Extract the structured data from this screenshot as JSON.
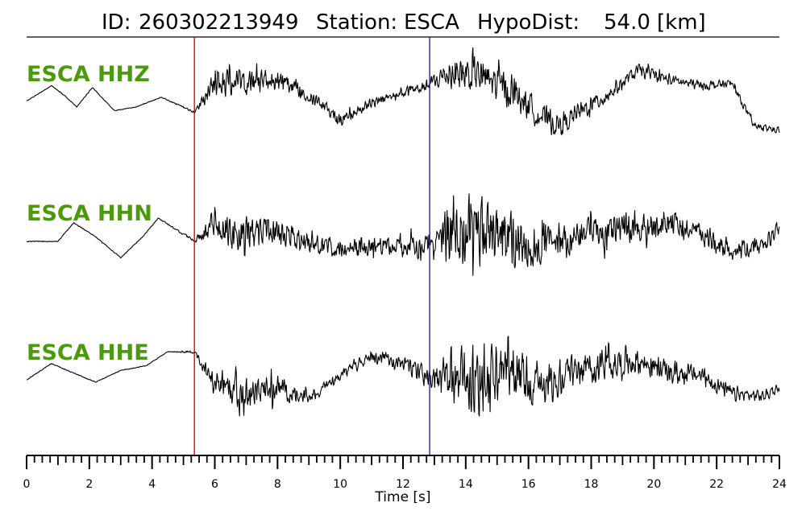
{
  "chart_data": {
    "type": "line",
    "title": {
      "id_label": "ID:",
      "id_value": "260302213949",
      "station_label": "Station:",
      "station_value": "ESCA",
      "dist_label": "HypoDist:",
      "dist_value": "54.0",
      "dist_unit": "[km]"
    },
    "xlabel": "Time [s]",
    "xlim": [
      0,
      24
    ],
    "x_major_ticks": [
      0,
      2,
      4,
      6,
      8,
      10,
      12,
      14,
      16,
      18,
      20,
      22,
      24
    ],
    "x_tick_labels": [
      "0",
      "2",
      "4",
      "6",
      "8",
      "10",
      "12",
      "14",
      "16",
      "18",
      "20",
      "22",
      "24"
    ],
    "x_minor_tick_step": 0.25,
    "picks": [
      {
        "phase": "P",
        "time": 5.35,
        "color": "#e8000b"
      },
      {
        "phase": "S",
        "time": 12.85,
        "color": "#1f1fb4"
      }
    ],
    "label_color": "#4b9a0c",
    "trace_color": "#000000",
    "series": [
      {
        "name": "ESCA HHZ",
        "t": [
          0,
          0.8,
          1.2,
          1.6,
          2.1,
          2.8,
          3.5,
          4.3,
          5.35,
          6.0,
          7.0,
          8.0,
          9.0,
          10.0,
          11.0,
          12.0,
          12.8,
          13.5,
          14.5,
          15.5,
          16.5,
          17.0,
          17.5,
          18.5,
          19.5,
          20.5,
          21.5,
          22.5,
          23.2,
          24
        ],
        "base": [
          0.05,
          0.45,
          0.2,
          -0.1,
          0.4,
          -0.2,
          -0.1,
          0.15,
          -0.25,
          0.55,
          0.5,
          0.65,
          0.2,
          -0.45,
          0.0,
          0.25,
          0.45,
          0.8,
          0.7,
          0.3,
          -0.4,
          -0.6,
          -0.3,
          0.2,
          0.85,
          0.6,
          0.45,
          0.5,
          -0.6,
          -0.7
        ],
        "amp": [
          0.01,
          0.01,
          0.01,
          0.01,
          0.01,
          0.01,
          0.01,
          0.01,
          0.04,
          0.45,
          0.4,
          0.3,
          0.22,
          0.18,
          0.15,
          0.15,
          0.18,
          0.55,
          0.6,
          0.5,
          0.4,
          0.35,
          0.3,
          0.25,
          0.2,
          0.18,
          0.15,
          0.12,
          0.1,
          0.1
        ]
      },
      {
        "name": "ESCA HHN",
        "t": [
          0,
          1.0,
          1.5,
          2.2,
          3.0,
          3.7,
          4.2,
          5.35,
          6.0,
          6.5,
          7.5,
          8.5,
          9.5,
          10.5,
          11.5,
          12.5,
          12.9,
          13.5,
          14.5,
          15.5,
          16.5,
          17.5,
          18.5,
          19.5,
          20.5,
          21.5,
          22.5,
          23.5,
          24
        ],
        "base": [
          0.0,
          0.0,
          0.4,
          0.1,
          -0.35,
          0.1,
          0.5,
          0.0,
          0.4,
          0.2,
          0.2,
          0.1,
          -0.1,
          -0.15,
          -0.1,
          -0.1,
          0.0,
          0.3,
          0.2,
          0.0,
          -0.05,
          0.1,
          0.2,
          0.3,
          0.4,
          0.15,
          -0.2,
          -0.1,
          0.3
        ],
        "amp": [
          0.01,
          0.01,
          0.01,
          0.01,
          0.01,
          0.01,
          0.01,
          0.04,
          0.4,
          0.55,
          0.4,
          0.3,
          0.25,
          0.25,
          0.25,
          0.3,
          0.3,
          0.8,
          0.85,
          0.7,
          0.5,
          0.45,
          0.45,
          0.4,
          0.35,
          0.3,
          0.25,
          0.2,
          0.2
        ]
      },
      {
        "name": "ESCA HHE",
        "t": [
          0,
          0.8,
          1.3,
          2.2,
          3.0,
          3.8,
          4.5,
          5.35,
          6.0,
          7.0,
          8.0,
          9.0,
          10.0,
          11.0,
          12.0,
          12.9,
          13.5,
          14.5,
          15.5,
          16.5,
          17.5,
          18.5,
          19.5,
          20.5,
          21.5,
          22.5,
          23.5,
          24
        ],
        "base": [
          0.0,
          0.35,
          0.2,
          -0.05,
          0.2,
          0.3,
          0.6,
          0.6,
          -0.1,
          -0.3,
          -0.2,
          -0.4,
          0.1,
          0.5,
          0.35,
          0.0,
          0.0,
          0.0,
          0.2,
          -0.1,
          0.25,
          0.35,
          0.4,
          0.15,
          0.1,
          -0.3,
          -0.35,
          -0.15
        ],
        "amp": [
          0.01,
          0.01,
          0.01,
          0.01,
          0.01,
          0.01,
          0.01,
          0.04,
          0.35,
          0.45,
          0.3,
          0.15,
          0.15,
          0.15,
          0.2,
          0.25,
          0.8,
          0.9,
          0.85,
          0.5,
          0.45,
          0.4,
          0.35,
          0.3,
          0.25,
          0.2,
          0.15,
          0.15
        ]
      }
    ]
  }
}
